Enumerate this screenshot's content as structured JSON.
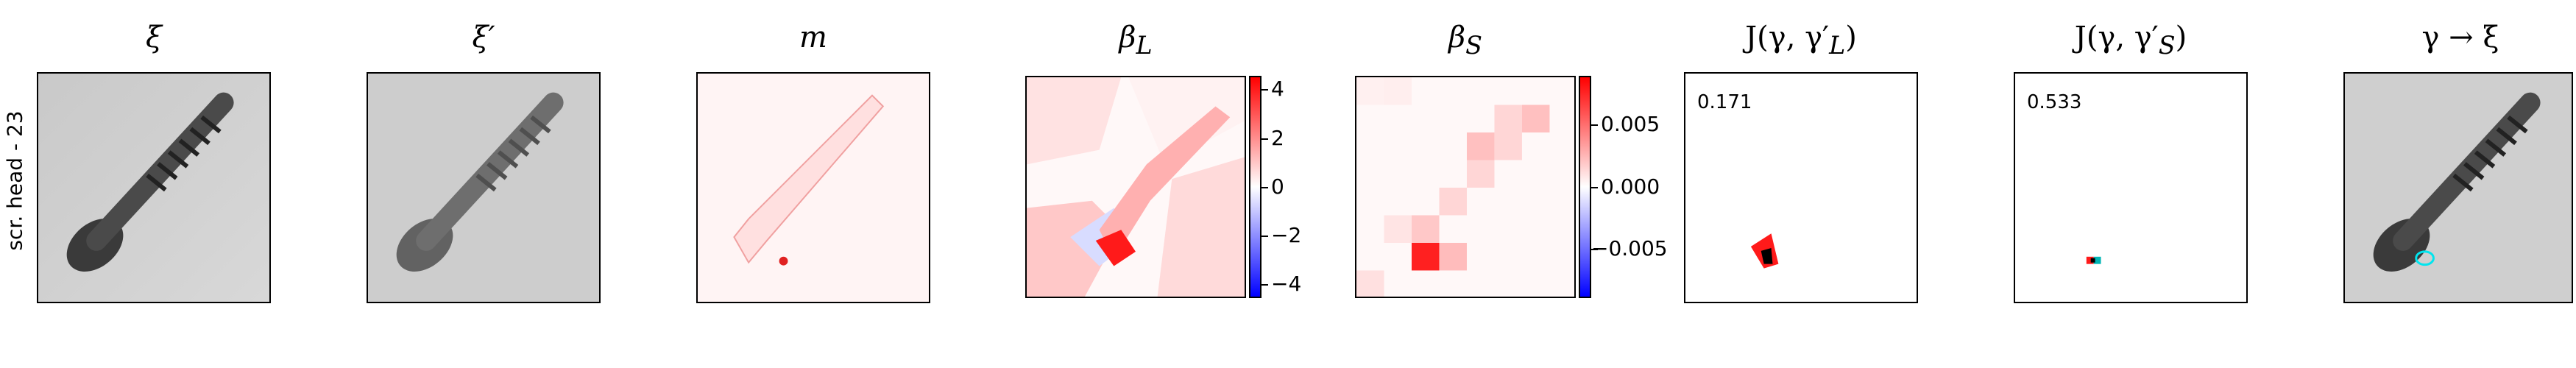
{
  "row_label": "scr. head - 23",
  "panels": [
    {
      "title": "ξ"
    },
    {
      "title": "ξ′"
    },
    {
      "title": "m"
    },
    {
      "title": "β",
      "sub": "L"
    },
    {
      "title": "β",
      "sub": "S"
    },
    {
      "title": "J(γ, γ′",
      "sub": "L",
      "tail": ")"
    },
    {
      "title": "J(γ, γ′",
      "sub": "S",
      "tail": ")"
    },
    {
      "title": "γ → ξ"
    }
  ],
  "scores": {
    "jl": "0.171",
    "js": "0.533"
  },
  "colorbars": {
    "beta_l": {
      "ticks": [
        "4",
        "2",
        "0",
        "−2",
        "−4"
      ]
    },
    "beta_s": {
      "ticks": [
        "0.005",
        "0.000",
        "−0.005"
      ]
    }
  },
  "colors": {
    "red": "#ff0000",
    "blue": "#0000ff",
    "mask_outline": "#00e5ee"
  }
}
